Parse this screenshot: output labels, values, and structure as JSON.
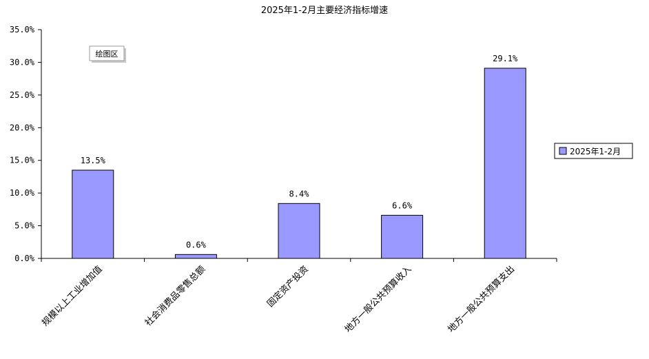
{
  "chart_data": {
    "type": "bar",
    "title": "2025年1-2月主要经济指标增速",
    "categories": [
      "规模以上工业增加值",
      "社会消费品零售总额",
      "固定资产投资",
      "地方一般公共预算收入",
      "地方一般公共预算支出"
    ],
    "series": [
      {
        "name": "2025年1-2月",
        "values": [
          13.5,
          0.6,
          8.4,
          6.6,
          29.1
        ],
        "color": "#9999ff"
      }
    ],
    "data_labels": [
      "13.5%",
      "0.6%",
      "8.4%",
      "6.6%",
      "29.1%"
    ],
    "y_ticks": [
      "0.0%",
      "5.0%",
      "10.0%",
      "15.0%",
      "20.0%",
      "25.0%",
      "30.0%",
      "35.0%"
    ],
    "ylim": [
      0,
      35
    ],
    "ytick_step": 5,
    "grid": false,
    "legend_position": "right",
    "xlabel": "",
    "ylabel": ""
  },
  "plot_area_label": "绘图区"
}
